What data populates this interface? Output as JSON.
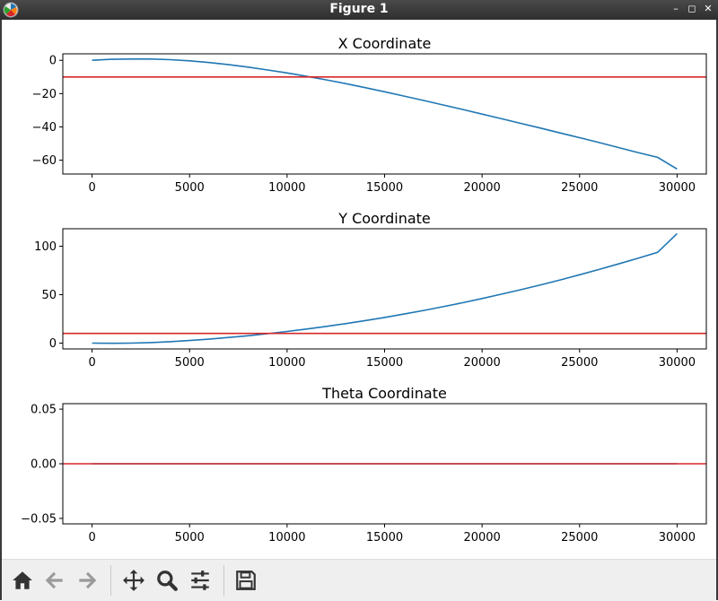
{
  "window": {
    "title": "Figure 1"
  },
  "toolbar": {
    "buttons": [
      {
        "name": "home-button",
        "icon": "home-icon",
        "enabled": true
      },
      {
        "name": "back-button",
        "icon": "arrow-left-icon",
        "enabled": false
      },
      {
        "name": "forward-button",
        "icon": "arrow-right-icon",
        "enabled": false
      },
      {
        "name": "pan-button",
        "icon": "move-icon",
        "enabled": true
      },
      {
        "name": "zoom-button",
        "icon": "magnifier-icon",
        "enabled": true
      },
      {
        "name": "configure-subplots-button",
        "icon": "sliders-icon",
        "enabled": true
      },
      {
        "name": "save-button",
        "icon": "floppy-disk-icon",
        "enabled": true
      }
    ]
  },
  "colors": {
    "line": "#1f77b4",
    "reference": "#d62728"
  },
  "chart_data": [
    {
      "type": "line",
      "title": "X Coordinate",
      "xlim": [
        -1500,
        31500
      ],
      "ylim": [
        -68.3,
        3.9
      ],
      "xticks": [
        0,
        5000,
        10000,
        15000,
        20000,
        25000,
        30000
      ],
      "yticks": [
        0,
        -20,
        -40,
        -60
      ],
      "xtick_labels": [
        "0",
        "5000",
        "10000",
        "15000",
        "20000",
        "25000",
        "30000"
      ],
      "ytick_labels": [
        "0",
        "−20",
        "−40",
        "−60"
      ],
      "series": [
        {
          "x": [
            0,
            1000,
            2000,
            2500,
            3000,
            4000,
            5000,
            6000,
            7000,
            8000,
            9000,
            10000,
            11000,
            12000,
            13000,
            14000,
            15000,
            16000,
            17000,
            18000,
            19000,
            20000,
            21000,
            22000,
            23000,
            24000,
            25000,
            26000,
            27000,
            28000,
            29000,
            30000
          ],
          "y": [
            0,
            0.6,
            0.8,
            0.8,
            0.75,
            0.4,
            -0.3,
            -1.3,
            -2.6,
            -4.1,
            -5.8,
            -7.6,
            -9.6,
            -11.7,
            -14.0,
            -16.4,
            -18.9,
            -21.5,
            -24.1,
            -26.8,
            -29.5,
            -32.3,
            -35.1,
            -37.9,
            -40.7,
            -43.6,
            -46.5,
            -49.4,
            -52.4,
            -55.4,
            -58.3,
            -65.3
          ]
        }
      ],
      "hline": -10
    },
    {
      "type": "line",
      "title": "Y Coordinate",
      "xlim": [
        -1500,
        31500
      ],
      "ylim": [
        -6,
        118
      ],
      "xticks": [
        0,
        5000,
        10000,
        15000,
        20000,
        25000,
        30000
      ],
      "yticks": [
        0,
        50,
        100
      ],
      "xtick_labels": [
        "0",
        "5000",
        "10000",
        "15000",
        "20000",
        "25000",
        "30000"
      ],
      "ytick_labels": [
        "0",
        "50",
        "100"
      ],
      "series": [
        {
          "x": [
            0,
            1000,
            2000,
            3000,
            4000,
            5000,
            6000,
            7000,
            8000,
            9000,
            10000,
            11000,
            12000,
            13000,
            14000,
            15000,
            16000,
            17000,
            18000,
            19000,
            20000,
            21000,
            22000,
            23000,
            24000,
            25000,
            26000,
            27000,
            28000,
            29000,
            30000
          ],
          "y": [
            0,
            -0.2,
            0,
            0.6,
            1.5,
            2.7,
            4.1,
            5.8,
            7.6,
            9.7,
            12.0,
            14.5,
            17.2,
            20.1,
            23.2,
            26.5,
            30.0,
            33.7,
            37.6,
            41.7,
            46.0,
            50.5,
            55.2,
            60.1,
            65.2,
            70.5,
            76.0,
            81.7,
            87.6,
            93.7,
            113
          ]
        }
      ],
      "hline": 10
    },
    {
      "type": "line",
      "title": "Theta Coordinate",
      "xlim": [
        -1500,
        31500
      ],
      "ylim": [
        -0.055,
        0.055
      ],
      "xticks": [
        0,
        5000,
        10000,
        15000,
        20000,
        25000,
        30000
      ],
      "yticks": [
        0.05,
        0.0,
        -0.05
      ],
      "xtick_labels": [
        "0",
        "5000",
        "10000",
        "15000",
        "20000",
        "25000",
        "30000"
      ],
      "ytick_labels": [
        "0.05",
        "0.00",
        "−0.05"
      ],
      "series": [
        {
          "x": [
            0,
            30000
          ],
          "y": [
            0,
            0
          ]
        }
      ],
      "hline": 0
    }
  ]
}
